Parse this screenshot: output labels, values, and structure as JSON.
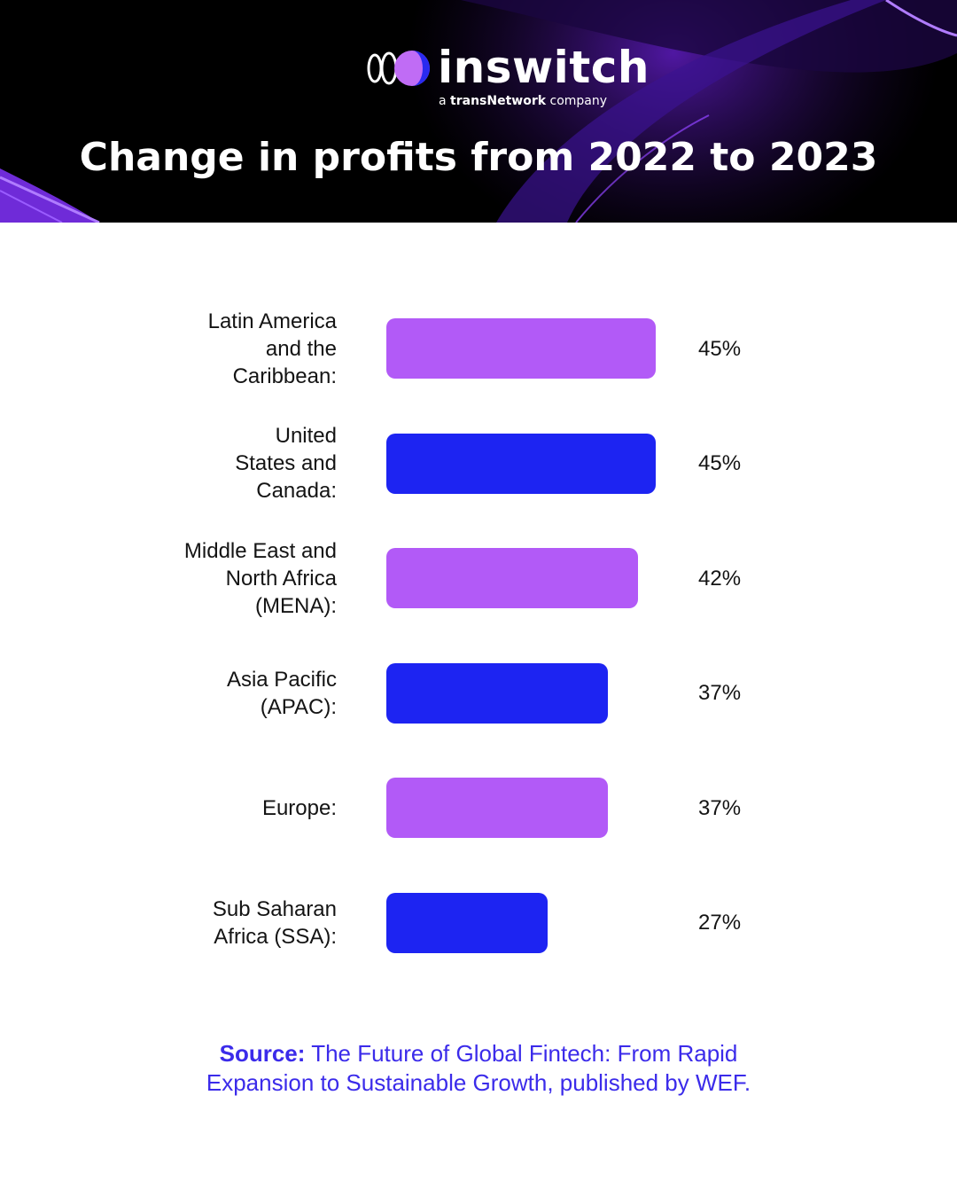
{
  "brand": {
    "name": "inswitch",
    "tagline_prefix": "a",
    "tagline_bold": "transNetwork",
    "tagline_suffix": "company",
    "accent": "#b25af7",
    "logo_colors": [
      "#2a2af0",
      "#c06cf5",
      "#ffffff"
    ]
  },
  "chart_data": {
    "type": "bar",
    "orientation": "horizontal",
    "title": "Change in profits from 2022 to 2023",
    "categories": [
      "Latin America\nand the\nCaribbean:",
      "United\nStates and\nCanada:",
      "Middle East and\nNorth Africa\n(MENA):",
      "Asia Pacific\n(APAC):",
      "Europe:",
      "Sub Saharan\nAfrica (SSA):"
    ],
    "values": [
      45,
      45,
      42,
      37,
      37,
      27
    ],
    "value_labels": [
      "45%",
      "45%",
      "42%",
      "37%",
      "37%",
      "27%"
    ],
    "colors": [
      "#b25af7",
      "#1d24f2",
      "#b25af7",
      "#1d24f2",
      "#b25af7",
      "#1d24f2"
    ],
    "xlim": [
      0,
      45
    ],
    "unit": "%",
    "grid": false
  },
  "source": {
    "label": "Source:",
    "line1_rest": "The Future of Global Fintech: From Rapid",
    "line2": "Expansion to Sustainable Growth, published by WEF."
  }
}
